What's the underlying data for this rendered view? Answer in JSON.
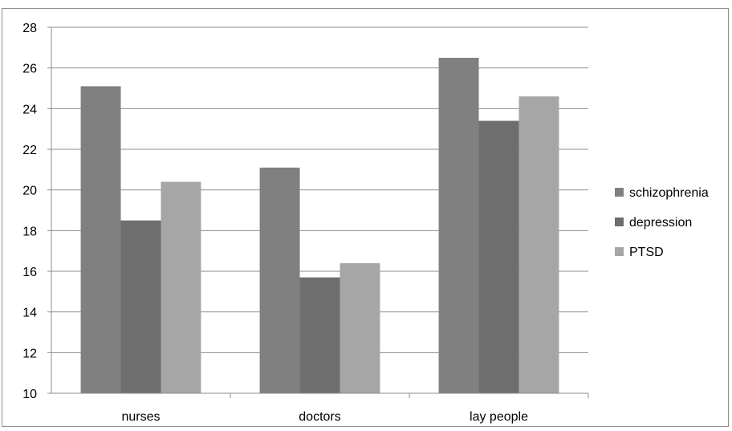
{
  "chart_data": {
    "type": "bar",
    "categories": [
      "nurses",
      "doctors",
      "lay people"
    ],
    "series": [
      {
        "name": "schizophrenia",
        "values": [
          25.1,
          21.1,
          26.5
        ],
        "color": "#808080"
      },
      {
        "name": "depression",
        "values": [
          18.5,
          15.7,
          23.4
        ],
        "color": "#6e6e6e"
      },
      {
        "name": "PTSD",
        "values": [
          20.4,
          16.4,
          24.6
        ],
        "color": "#a6a6a6"
      }
    ],
    "title": "",
    "xlabel": "",
    "ylabel": "",
    "ylim": [
      10,
      28
    ],
    "yticks": [
      10,
      12,
      14,
      16,
      18,
      20,
      22,
      24,
      26,
      28
    ],
    "grid": true,
    "legend": "right"
  }
}
